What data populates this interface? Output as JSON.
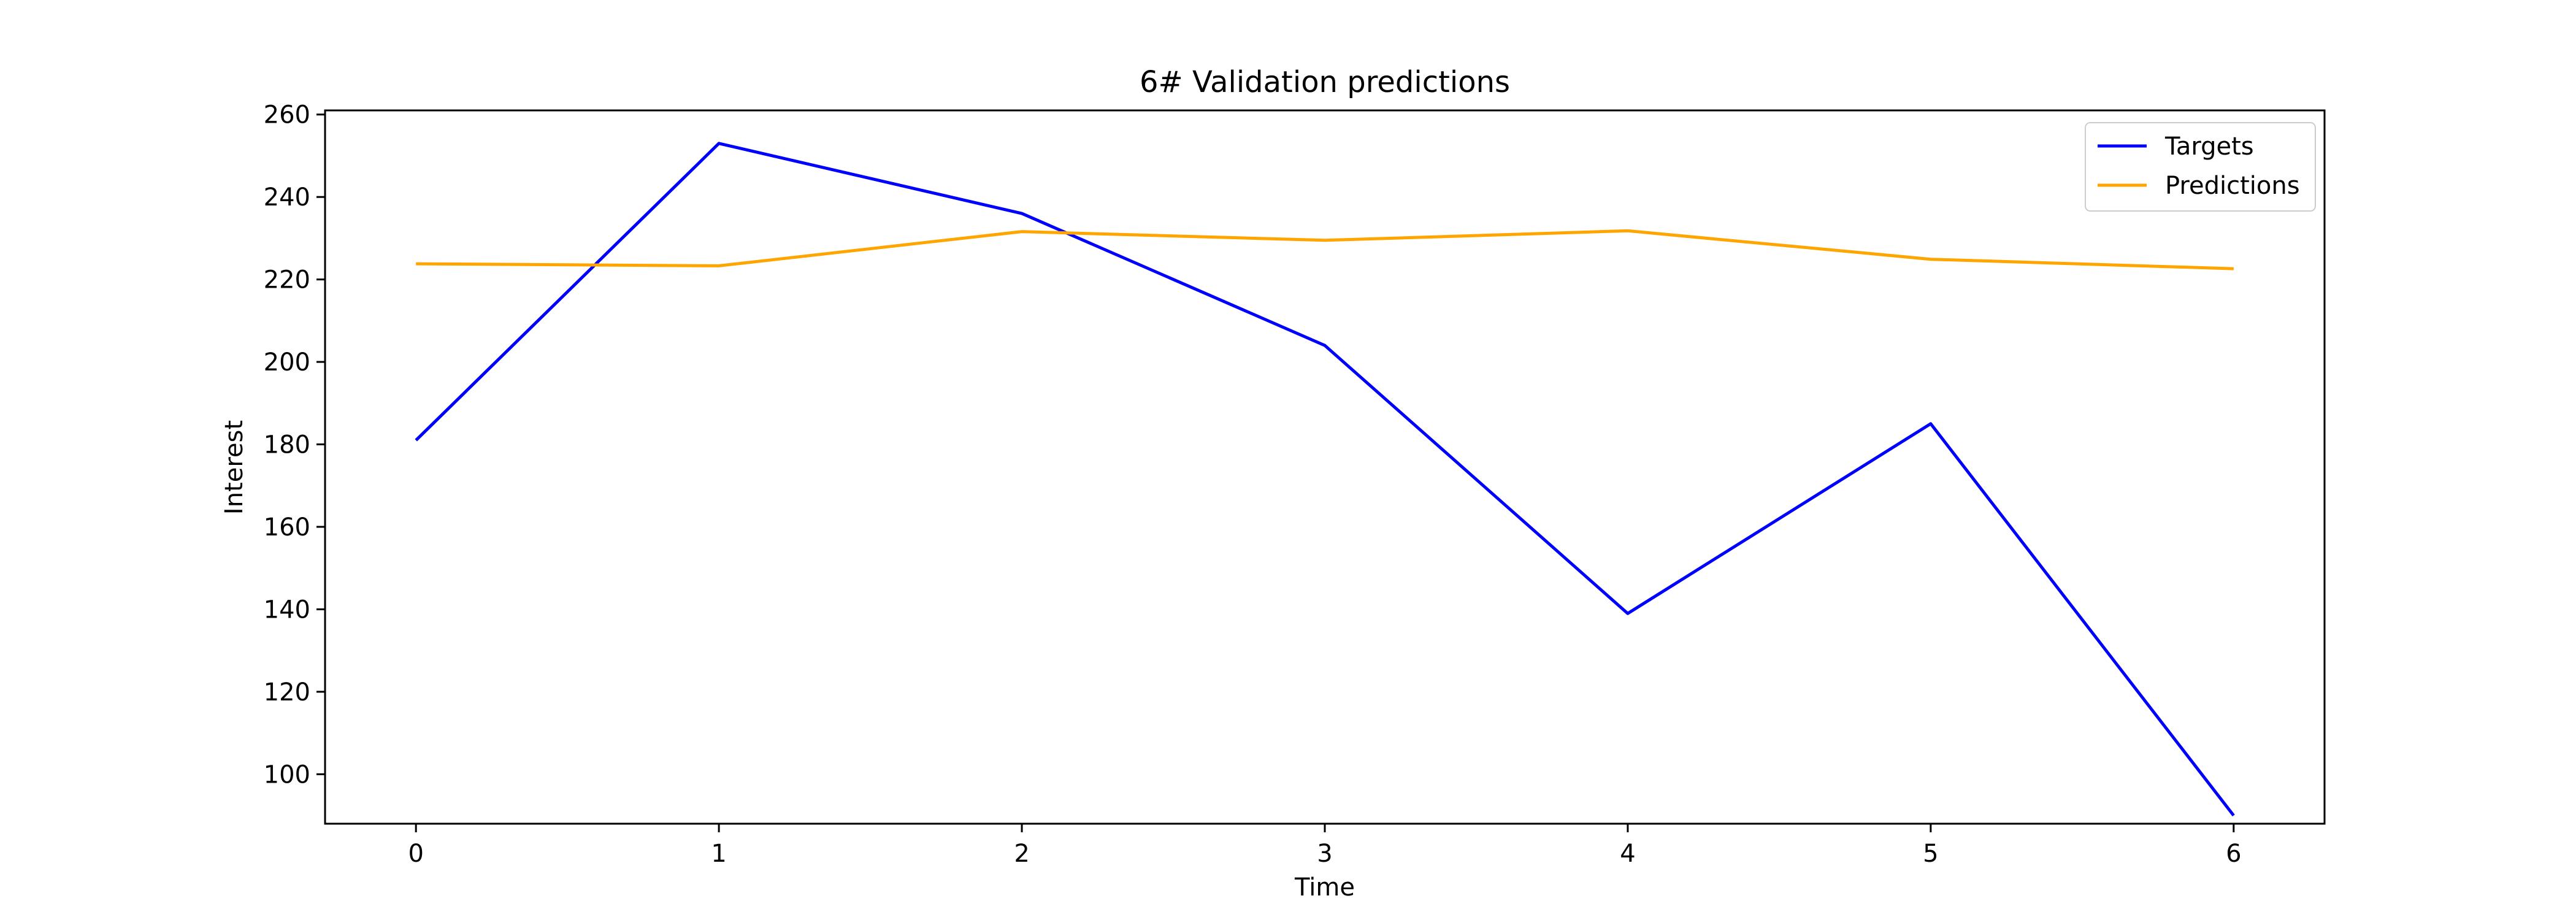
{
  "chart_data": {
    "type": "line",
    "title": "6# Validation predictions",
    "xlabel": "Time",
    "ylabel": "Interest",
    "x": [
      0,
      1,
      2,
      3,
      4,
      5,
      6
    ],
    "xlim": [
      -0.3,
      6.3
    ],
    "ylim": [
      88,
      261
    ],
    "x_ticks": [
      0,
      1,
      2,
      3,
      4,
      5,
      6
    ],
    "y_ticks": [
      100,
      120,
      140,
      160,
      180,
      200,
      220,
      240,
      260
    ],
    "grid": false,
    "legend_position": "top-right",
    "series": [
      {
        "name": "Targets",
        "color": "#0000ff",
        "values": [
          181,
          253,
          236,
          204,
          139,
          185,
          90
        ]
      },
      {
        "name": "Predictions",
        "color": "#ffa500",
        "values": [
          223.8,
          223.3,
          231.6,
          229.5,
          231.8,
          224.9,
          222.6
        ]
      }
    ]
  }
}
